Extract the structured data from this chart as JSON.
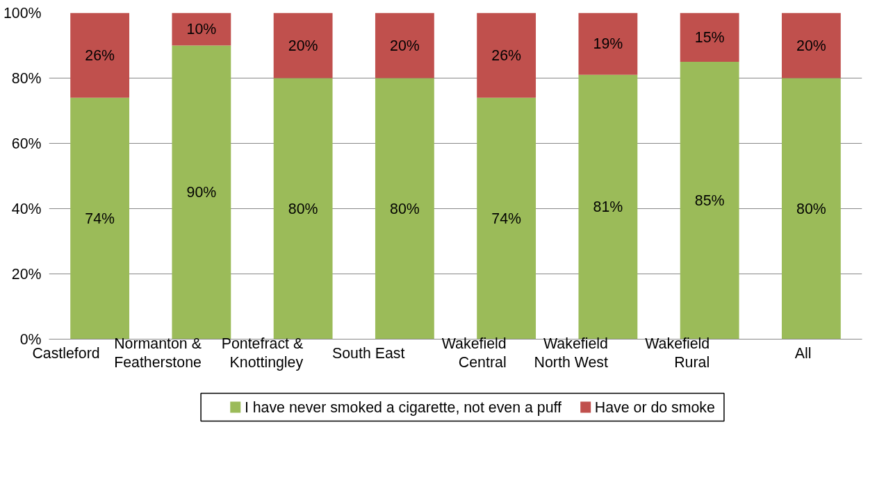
{
  "chart_data": {
    "type": "bar",
    "stacked": true,
    "categories": [
      "Castleford",
      "Normanton & Featherstone",
      "Pontefract & Knottingley",
      "South East",
      "Wakefield Central",
      "Wakefield North West",
      "Wakefield Rural",
      "All"
    ],
    "series": [
      {
        "name": "I have never smoked a cigarette, not even a puff",
        "color": "#9bbb59",
        "values": [
          74,
          90,
          80,
          80,
          74,
          81,
          85,
          80
        ],
        "value_labels": [
          "74%",
          "90%",
          "80%",
          "80%",
          "74%",
          "81%",
          "85%",
          "80%"
        ]
      },
      {
        "name": "Have or do smoke",
        "color": "#c0504d",
        "values": [
          26,
          10,
          20,
          20,
          26,
          19,
          15,
          20
        ],
        "value_labels": [
          "26%",
          "10%",
          "20%",
          "20%",
          "26%",
          "19%",
          "15%",
          "20%"
        ]
      }
    ],
    "ylim": [
      0,
      100
    ],
    "yticks": [
      {
        "value": 0,
        "label": "0%"
      },
      {
        "value": 20,
        "label": "20%"
      },
      {
        "value": 40,
        "label": "40%"
      },
      {
        "value": 60,
        "label": "60%"
      },
      {
        "value": 80,
        "label": "80%"
      },
      {
        "value": 100,
        "label": "100%"
      }
    ],
    "grid": "y",
    "legend": "bottom"
  }
}
